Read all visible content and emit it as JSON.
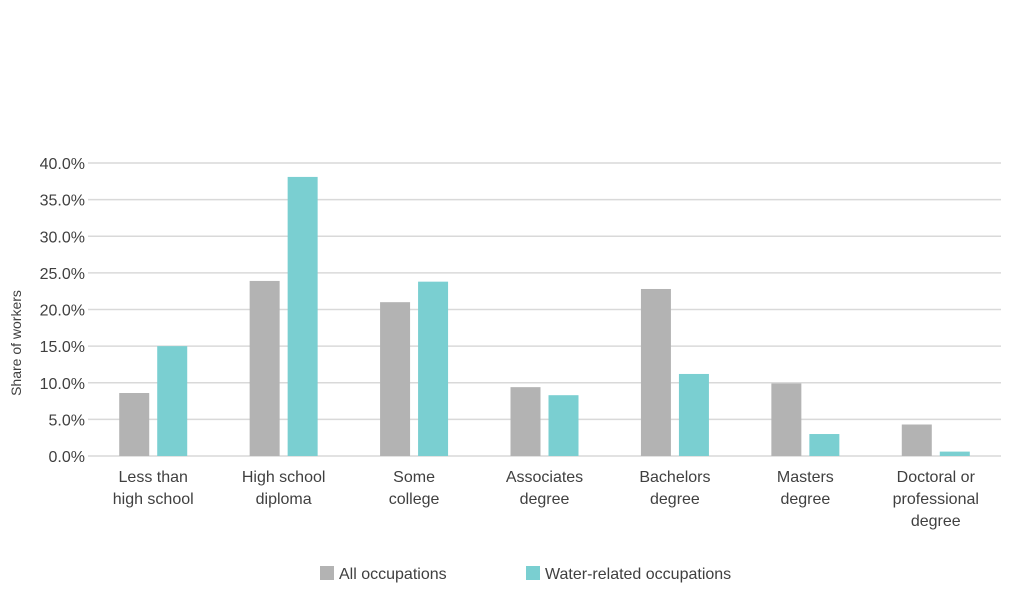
{
  "chart_data": {
    "type": "bar",
    "title": "",
    "ylabel": "Share of workers",
    "xlabel": "",
    "ylim": [
      0,
      40
    ],
    "yticks": [
      0,
      5,
      10,
      15,
      20,
      25,
      30,
      35,
      40
    ],
    "ytick_format": "percent_1dp",
    "grid": true,
    "legend_position": "bottom",
    "categories": [
      [
        "Less than",
        "high school"
      ],
      [
        "High school",
        "diploma"
      ],
      [
        "Some",
        "college"
      ],
      [
        "Associates",
        "degree"
      ],
      [
        "Bachelors",
        "degree"
      ],
      [
        "Masters",
        "degree"
      ],
      [
        "Doctoral or",
        "professional",
        "degree"
      ]
    ],
    "series": [
      {
        "name": "All occupations",
        "color": "#b3b3b3",
        "values": [
          8.6,
          23.9,
          21.0,
          9.4,
          22.8,
          9.9,
          4.3
        ]
      },
      {
        "name": "Water-related occupations",
        "color": "#7acfd1",
        "values": [
          15.0,
          38.1,
          23.8,
          8.3,
          11.2,
          3.0,
          0.6
        ]
      }
    ]
  }
}
